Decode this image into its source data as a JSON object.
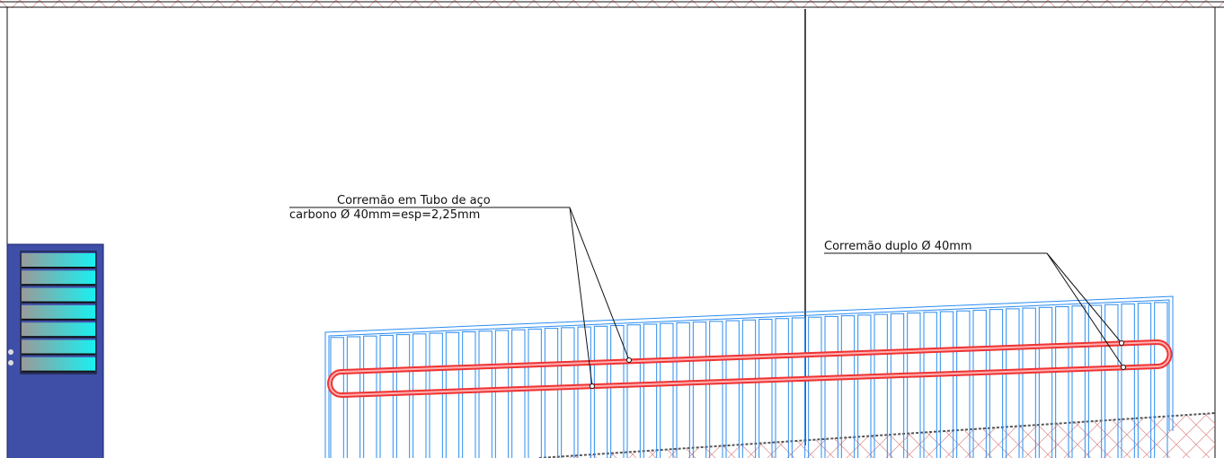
{
  "annotations": [
    {
      "lines": [
        "Corremão em Tubo de aço",
        "carbono Ø 40mm=esp=2,25mm"
      ]
    },
    {
      "text": "Corremão duplo Ø 40mm"
    }
  ]
}
